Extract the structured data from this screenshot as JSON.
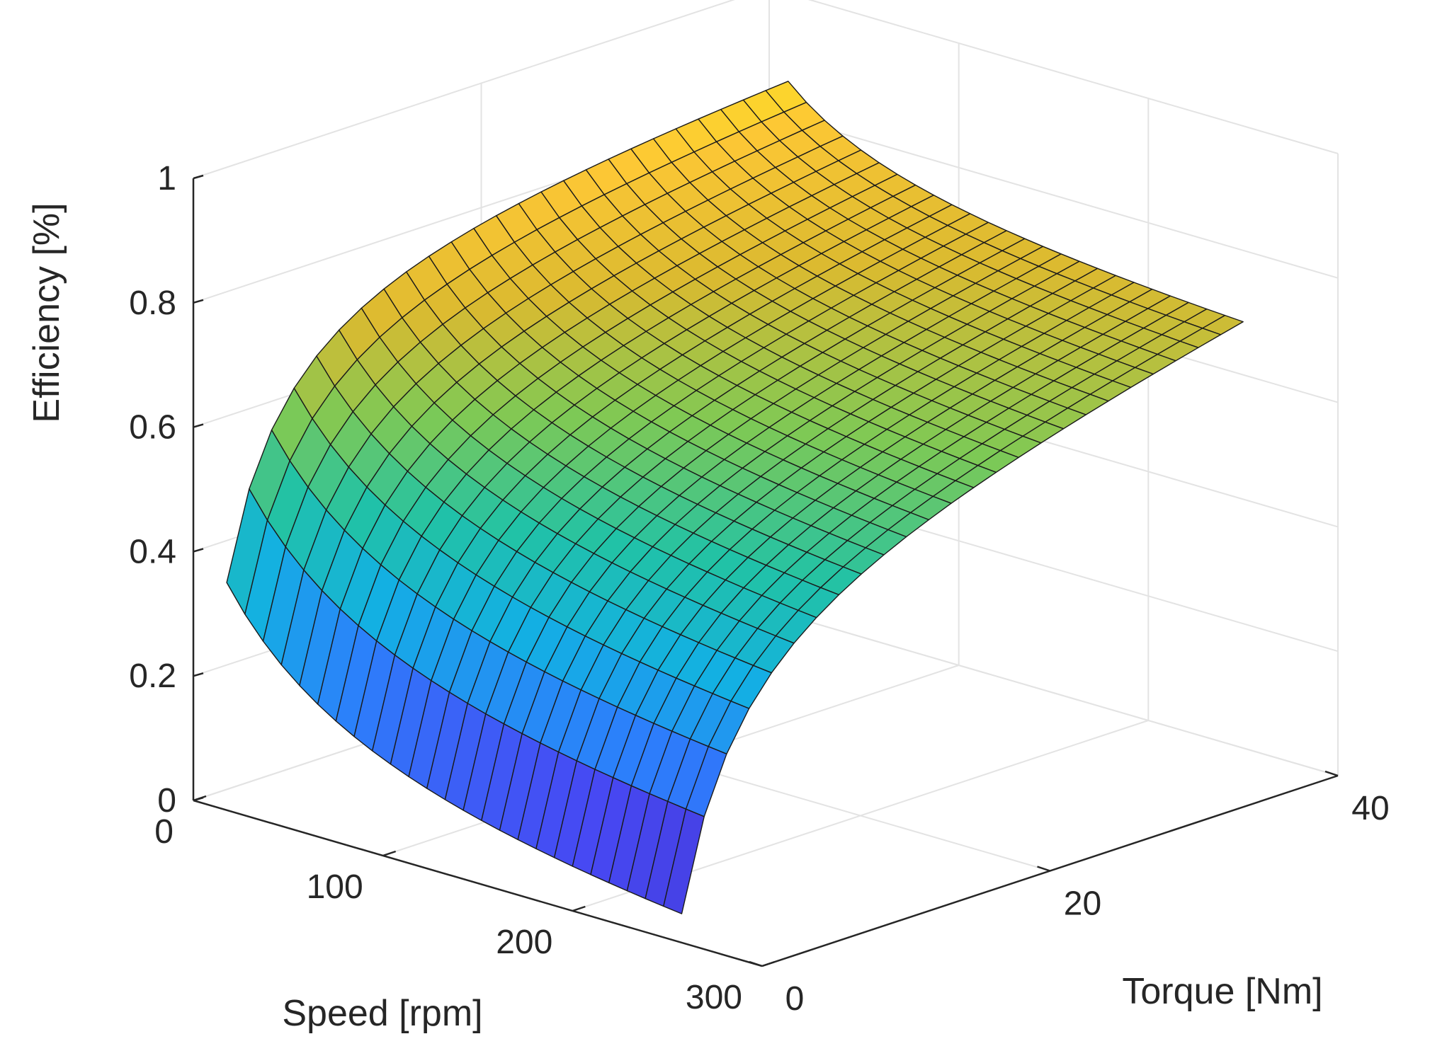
{
  "chart_data": {
    "type": "surface",
    "title": "",
    "xlabel": "Speed [rpm]",
    "ylabel": "Torque [Nm]",
    "zlabel": "Efficiency [%]",
    "xlim": [
      0,
      300
    ],
    "ylim": [
      0,
      40
    ],
    "zlim": [
      0,
      1
    ],
    "x_ticks": [
      "0",
      "100",
      "200",
      "300"
    ],
    "y_ticks": [
      "0",
      "20",
      "40"
    ],
    "z_ticks": [
      "0",
      "0.2",
      "0.4",
      "0.6",
      "0.8",
      "1"
    ],
    "grid": true,
    "colormap": "parula",
    "x_range": [
      10,
      250
    ],
    "y_range": [
      1,
      40
    ],
    "mesh_resolution": [
      25,
      25
    ],
    "corner_values": [
      {
        "speed": 10,
        "torque": 1,
        "efficiency": 0.34
      },
      {
        "speed": 250,
        "torque": 1,
        "efficiency": 0.01
      },
      {
        "speed": 10,
        "torque": 40,
        "efficiency": 0.88
      },
      {
        "speed": 250,
        "torque": 40,
        "efficiency": 0.72
      }
    ],
    "peak_efficiency": 0.93
  }
}
